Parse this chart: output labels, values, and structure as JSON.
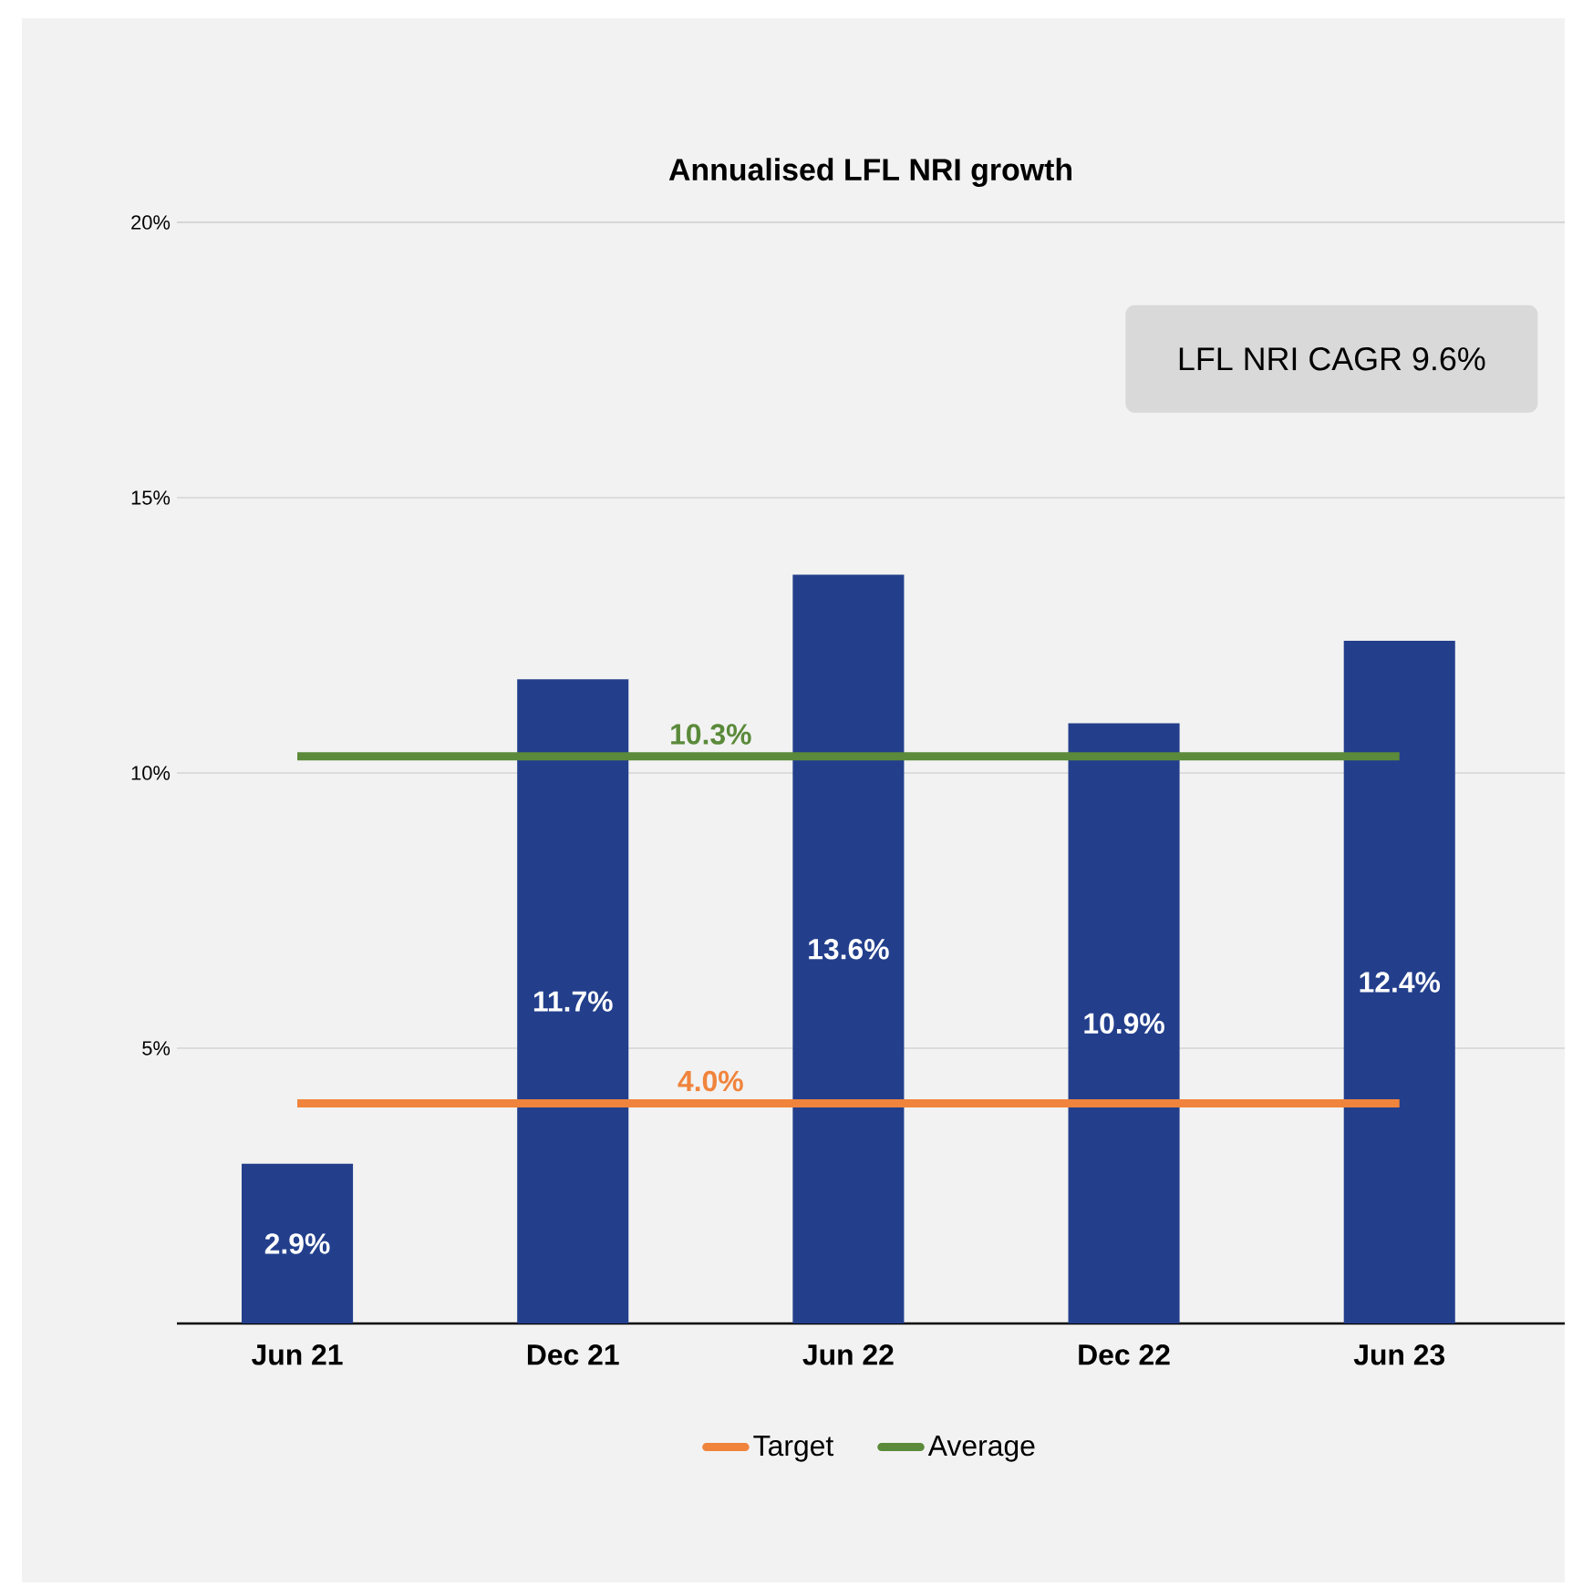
{
  "chart_data": {
    "type": "bar",
    "title": "Annualised LFL NRI growth",
    "categories": [
      "Jun 21",
      "Dec 21",
      "Jun 22",
      "Dec 22",
      "Jun 23"
    ],
    "series": [
      {
        "color": "#233f8c",
        "values": [
          2.9,
          11.7,
          13.6,
          10.9,
          12.4
        ],
        "value_labels": [
          "2.9%",
          "11.7%",
          "13.6%",
          "10.9%",
          "12.4%"
        ]
      },
      {
        "type": "line",
        "name": "Target",
        "color": "#f0843c",
        "values": [
          4.0,
          4.0,
          4.0,
          4.0,
          4.0
        ]
      },
      {
        "type": "line",
        "name": "Average",
        "color": "#5a8a3a",
        "values": [
          10.3,
          10.3,
          10.3,
          10.3,
          10.3
        ]
      }
    ],
    "ylim": [
      0,
      20
    ],
    "yticks": [
      {
        "value": 5,
        "label": "5%"
      },
      {
        "value": 10,
        "label": "10%"
      },
      {
        "value": 15,
        "label": "15%"
      },
      {
        "value": 20,
        "label": "20%"
      }
    ],
    "grid": "y",
    "legend": "bottom",
    "annotations": [
      "LFL NRI CAGR 9.6%",
      {
        "text": "10.3%",
        "y": 10.3
      },
      {
        "text": "4.0%",
        "y": 4.0
      }
    ]
  }
}
